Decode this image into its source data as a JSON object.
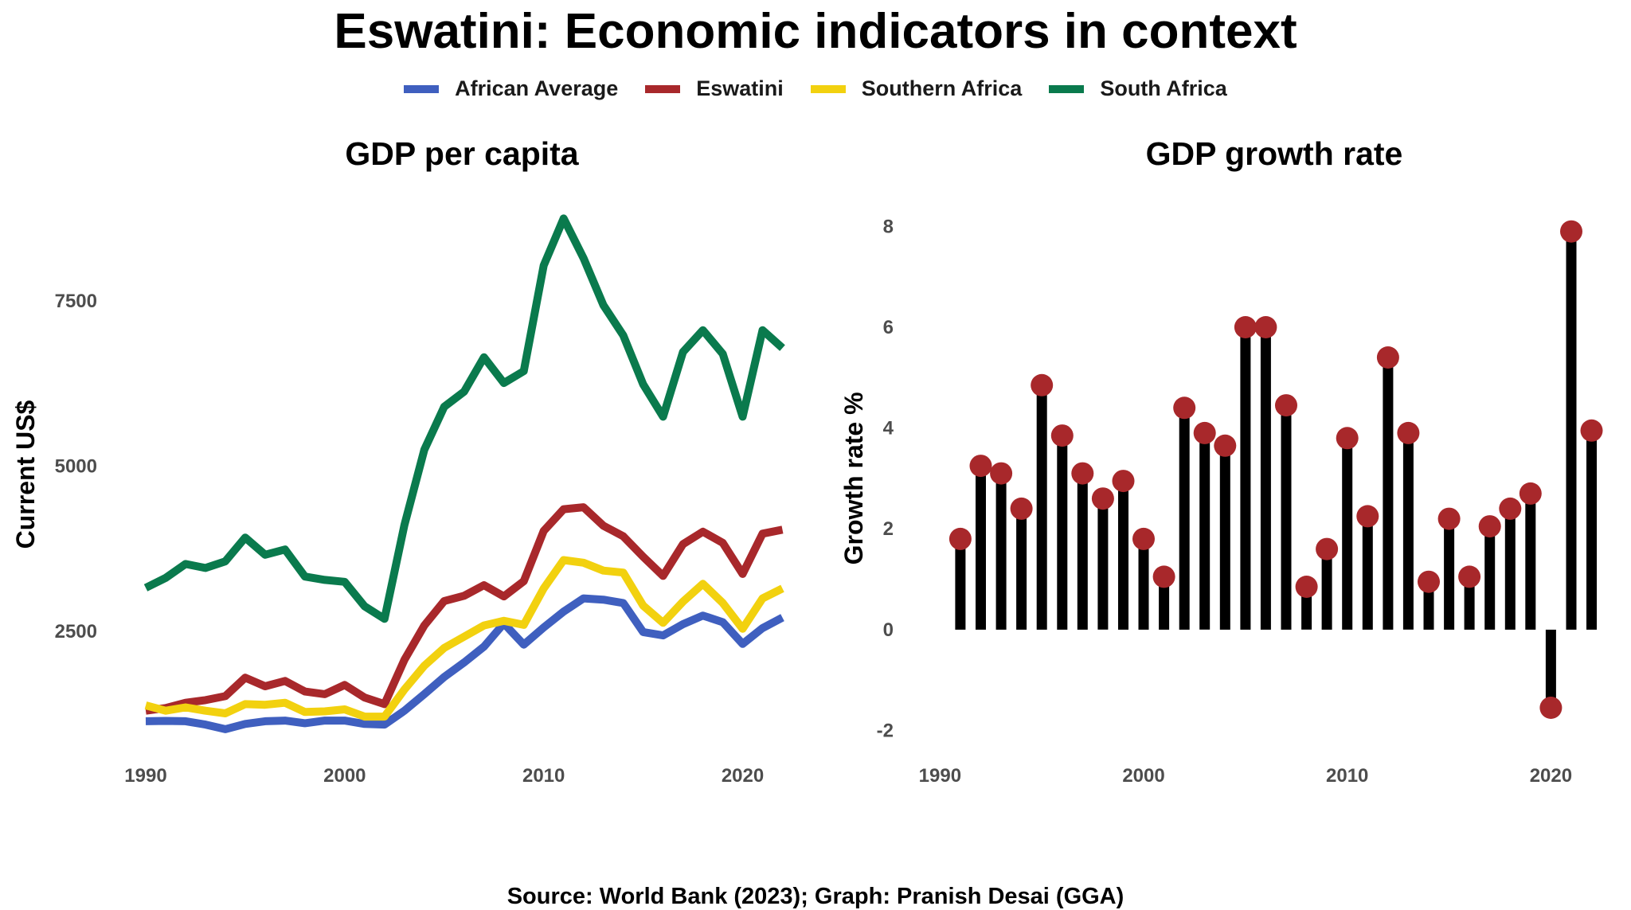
{
  "title": "Eswatini: Economic indicators in context",
  "source": "Source: World Bank (2023); Graph: Pranish Desai (GGA)",
  "legend": [
    {
      "label": "African Average",
      "color": "#3F5FBF"
    },
    {
      "label": "Eswatini",
      "color": "#A8282B"
    },
    {
      "label": "Southern Africa",
      "color": "#F2D10F"
    },
    {
      "label": "South Africa",
      "color": "#0A7A4D"
    }
  ],
  "chart_data": [
    {
      "type": "line",
      "title": "GDP per capita",
      "xlabel": "",
      "ylabel": "Current US$",
      "xlim": [
        1989.8,
        2022.3
      ],
      "ylim": [
        850,
        8900
      ],
      "xticks": [
        1990,
        2000,
        2010,
        2020
      ],
      "yticks": [
        2500,
        5000,
        7500
      ],
      "grid": false,
      "legend_position": "top",
      "x": [
        1990,
        1991,
        1992,
        1993,
        1994,
        1995,
        1996,
        1997,
        1998,
        1999,
        2000,
        2001,
        2002,
        2003,
        2004,
        2005,
        2006,
        2007,
        2008,
        2009,
        2010,
        2011,
        2012,
        2013,
        2014,
        2015,
        2016,
        2017,
        2018,
        2019,
        2020,
        2021,
        2022
      ],
      "series": [
        {
          "name": "African Average",
          "color": "#3F5FBF",
          "values": [
            1140,
            1145,
            1140,
            1090,
            1020,
            1100,
            1140,
            1150,
            1110,
            1150,
            1150,
            1100,
            1090,
            1300,
            1550,
            1810,
            2030,
            2270,
            2620,
            2300,
            2560,
            2800,
            3000,
            2980,
            2930,
            2490,
            2440,
            2610,
            2740,
            2640,
            2310,
            2550,
            2710
          ]
        },
        {
          "name": "Eswatini",
          "color": "#A8282B",
          "values": [
            1300,
            1340,
            1420,
            1460,
            1520,
            1800,
            1670,
            1750,
            1590,
            1550,
            1690,
            1500,
            1400,
            2070,
            2590,
            2960,
            3040,
            3200,
            3030,
            3260,
            4020,
            4350,
            4380,
            4100,
            3940,
            3630,
            3340,
            3820,
            4010,
            3840,
            3370,
            3980,
            4040
          ]
        },
        {
          "name": "Southern Africa",
          "color": "#F2D10F",
          "values": [
            1380,
            1300,
            1350,
            1300,
            1260,
            1400,
            1390,
            1420,
            1280,
            1290,
            1320,
            1210,
            1210,
            1620,
            1980,
            2250,
            2420,
            2590,
            2660,
            2600,
            3150,
            3580,
            3540,
            3420,
            3390,
            2890,
            2630,
            2950,
            3220,
            2930,
            2540,
            3000,
            3150
          ]
        },
        {
          "name": "South Africa",
          "color": "#0A7A4D",
          "values": [
            3160,
            3310,
            3520,
            3460,
            3560,
            3920,
            3660,
            3740,
            3330,
            3280,
            3250,
            2880,
            2690,
            4110,
            5250,
            5900,
            6130,
            6650,
            6260,
            6440,
            8040,
            8750,
            8150,
            7440,
            6980,
            6240,
            5750,
            6730,
            7060,
            6700,
            5750,
            7060,
            6790
          ]
        }
      ]
    },
    {
      "type": "bar",
      "title": "GDP growth rate",
      "xlabel": "",
      "ylabel": "Growth rate %",
      "xlim": [
        1988.5,
        2023.7
      ],
      "ylim": [
        -2.45,
        8.7
      ],
      "xticks": [
        1990,
        2000,
        2010,
        2020
      ],
      "yticks": [
        -2,
        0,
        2,
        4,
        6,
        8
      ],
      "grid": false,
      "bar_color": "#000000",
      "marker_color": "#A8282B",
      "x": [
        1991,
        1992,
        1993,
        1994,
        1995,
        1996,
        1997,
        1998,
        1999,
        2000,
        2001,
        2002,
        2003,
        2004,
        2005,
        2006,
        2007,
        2008,
        2009,
        2010,
        2011,
        2012,
        2013,
        2014,
        2015,
        2016,
        2017,
        2018,
        2019,
        2020,
        2021,
        2022
      ],
      "values": [
        1.8,
        3.25,
        3.1,
        2.4,
        4.85,
        3.85,
        3.1,
        2.6,
        2.95,
        1.8,
        1.05,
        4.4,
        3.9,
        3.65,
        6.0,
        6.0,
        4.45,
        0.85,
        1.6,
        3.8,
        2.25,
        5.4,
        3.9,
        0.95,
        2.2,
        1.05,
        2.05,
        2.4,
        2.7,
        -1.55,
        7.9,
        3.95
      ]
    }
  ]
}
